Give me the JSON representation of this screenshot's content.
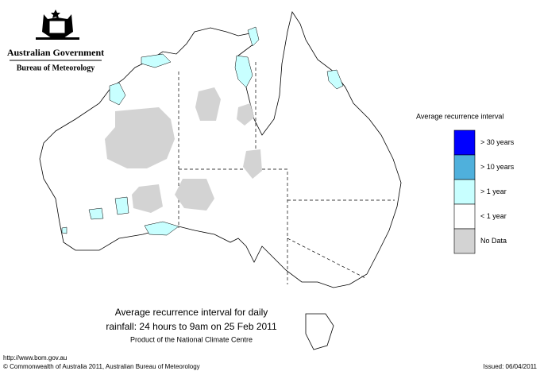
{
  "header": {
    "org": "Australian Government",
    "bureau": "Bureau of Meteorology"
  },
  "legend": {
    "title": "Average recurrence interval",
    "items": [
      {
        "label": "> 30 years",
        "color": "#0000ff"
      },
      {
        "label": "> 10 years",
        "color": "#4fb0dc"
      },
      {
        "label": "> 1 year",
        "color": "#c8ffff"
      },
      {
        "label": "< 1 year",
        "color": "#ffffff"
      },
      {
        "label": "No Data",
        "color": "#d3d3d3"
      }
    ]
  },
  "caption": {
    "line1": "Average recurrence interval for daily",
    "line2": "rainfall: 24 hours to 9am on 25 Feb 2011",
    "line3": "Product of the National Climate Centre"
  },
  "footer": {
    "url": "http://www.bom.gov.au",
    "copyright": "© Commonwealth of Australia 2011, Australian Bureau of Meteorology",
    "issued": "Issued: 06/04/2011"
  }
}
